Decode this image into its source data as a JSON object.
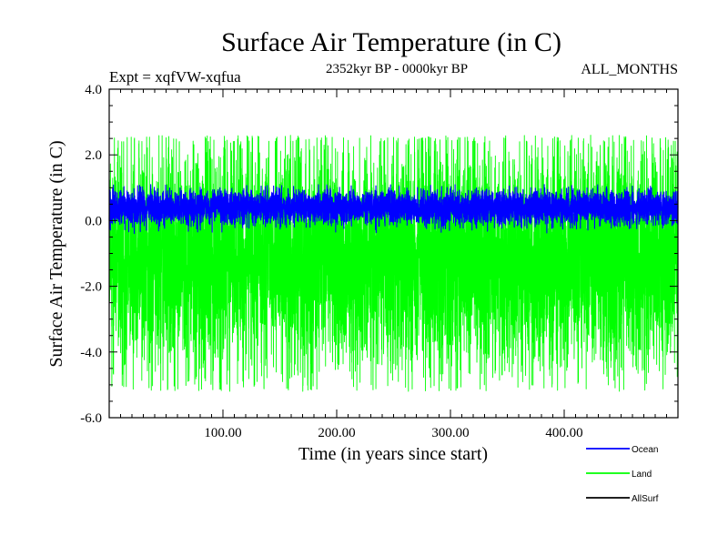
{
  "chart_data": {
    "type": "line",
    "title": "Surface Air Temperature (in C)",
    "subtitle_left": "Expt = xqfVW-xqfua",
    "subtitle_center": "2352kyr BP - 0000kyr BP",
    "subtitle_right": "ALL_MONTHS",
    "xlabel": "Time (in years since start)",
    "ylabel": "Surface Air Temperature (in C)",
    "xlim": [
      0,
      500
    ],
    "ylim": [
      -6.0,
      4.0
    ],
    "x_ticks": [
      100,
      200,
      300,
      400
    ],
    "x_tick_labels": [
      "100.00",
      "200.00",
      "300.00",
      "400.00"
    ],
    "y_ticks": [
      -6,
      -4,
      -2,
      0,
      2,
      4
    ],
    "y_tick_labels": [
      "-6.0",
      "-4.0",
      "-2.0",
      "0.0",
      "2.0",
      "4.0"
    ],
    "legend_position": "bottom-right, outside plot",
    "series": [
      {
        "name": "Land",
        "color": "#00ff00",
        "n_points": 6000,
        "mean": -1.2,
        "typical_max": 2.3,
        "typical_min": -4.6,
        "peak_max": 2.6,
        "peak_min": -5.2
      },
      {
        "name": "Ocean",
        "color": "#0000ff",
        "n_points": 6000,
        "mean": 0.35,
        "typical_max": 0.9,
        "typical_min": -0.1,
        "peak_max": 1.1,
        "peak_min": -0.4
      },
      {
        "name": "AllSurf",
        "color": "#000000",
        "n_points": 0,
        "mean": null
      }
    ]
  }
}
